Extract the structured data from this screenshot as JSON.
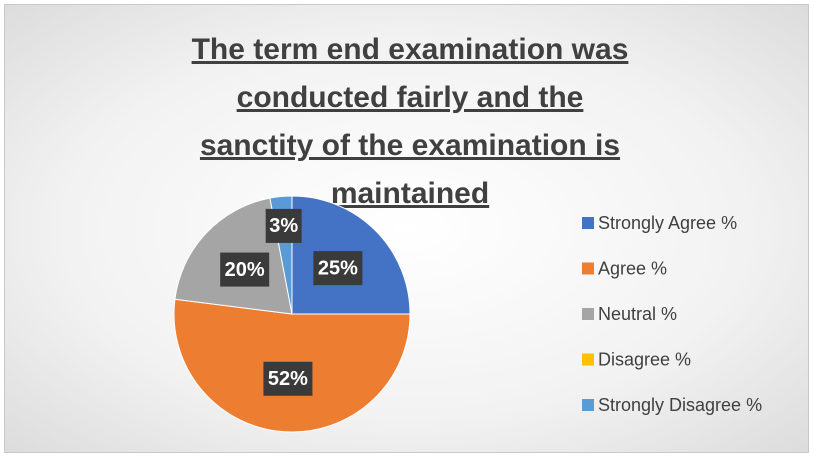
{
  "chart_data": {
    "type": "pie",
    "title": "The term end examination was conducted fairly and the sanctity of the examination is maintained",
    "categories": [
      "Strongly Agree %",
      "Agree %",
      "Neutral %",
      "Disagree %",
      "Strongly Disagree %"
    ],
    "values": [
      25,
      52,
      20,
      0,
      3
    ],
    "value_labels": [
      "25%",
      "52%",
      "20%",
      null,
      "3%"
    ],
    "colors": [
      "#4472c4",
      "#ed7d31",
      "#a5a5a5",
      "#ffc000",
      "#5b9bd5"
    ],
    "legend": "right"
  }
}
